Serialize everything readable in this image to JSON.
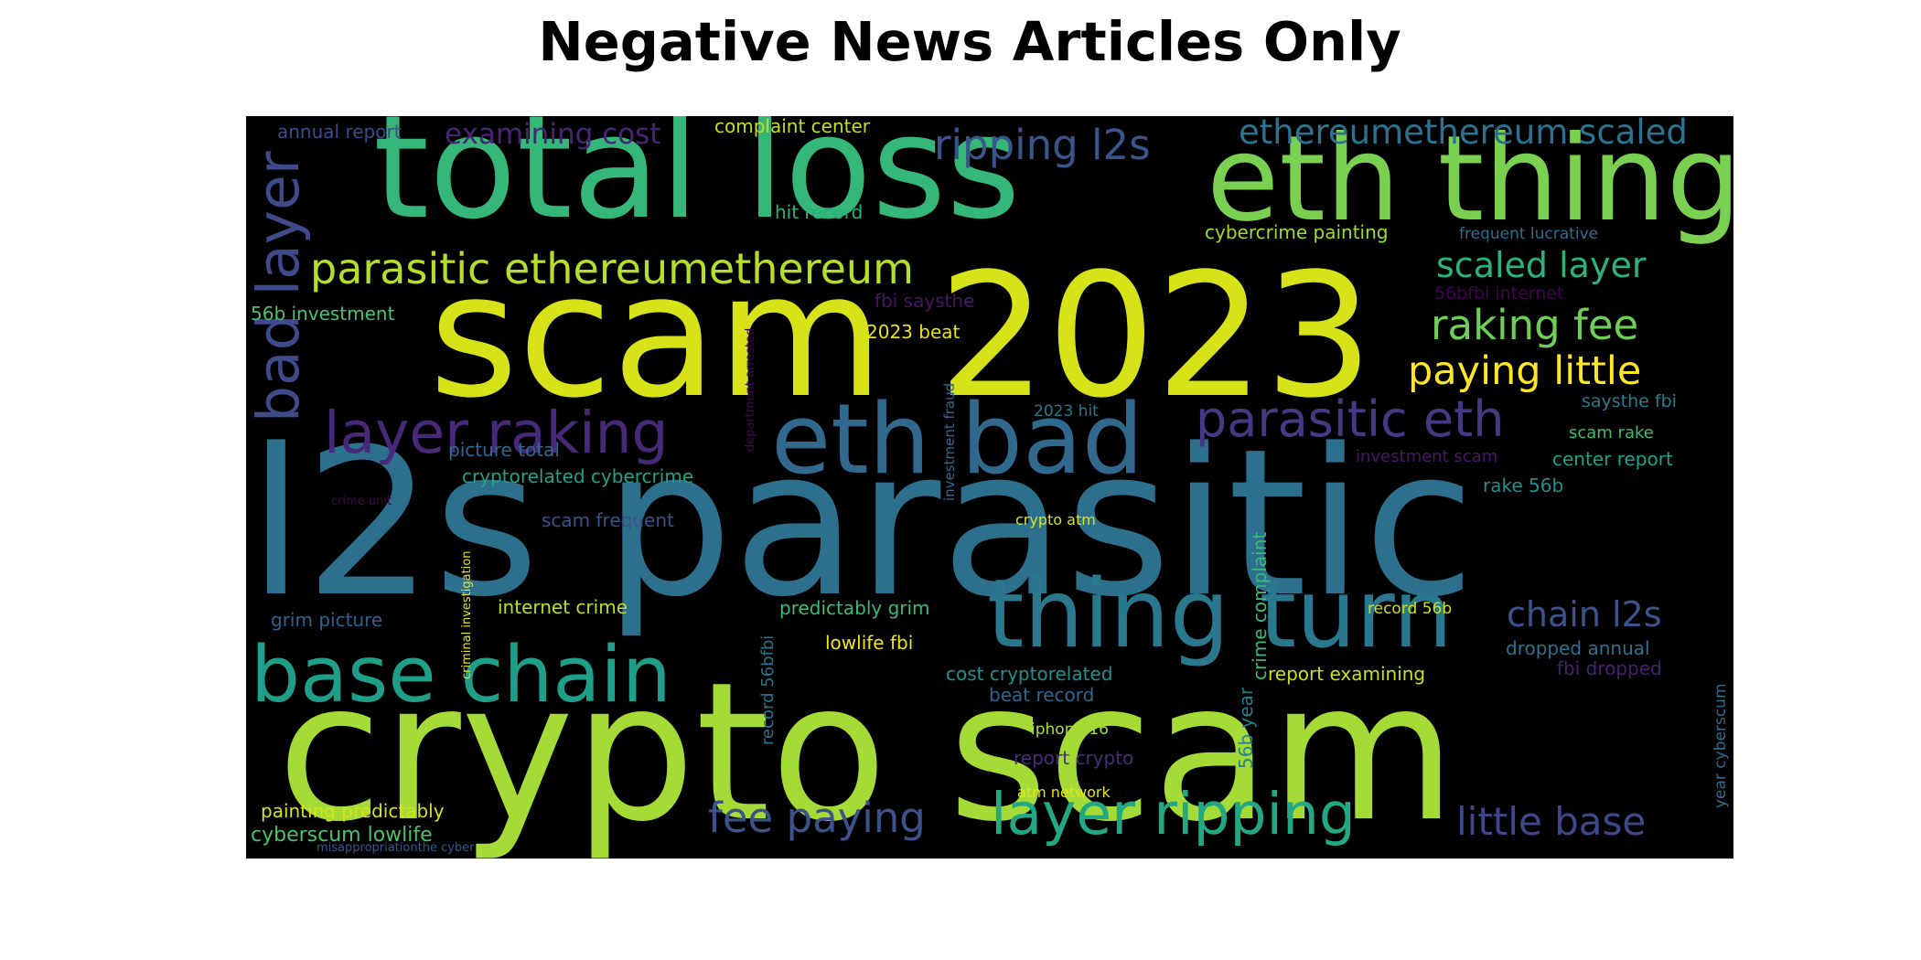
{
  "chart_data": {
    "type": "wordcloud",
    "title": "Negative News Articles Only",
    "background": "#000000",
    "colormap": "viridis",
    "words": [
      {
        "text": "l2s parasitic",
        "weight": 1.0,
        "color": "#2d708e"
      },
      {
        "text": "crypto scam",
        "weight": 0.95,
        "color": "#a5db36"
      },
      {
        "text": "scam 2023",
        "weight": 0.92,
        "color": "#d8e219"
      },
      {
        "text": "total loss",
        "weight": 0.77,
        "color": "#35b779"
      },
      {
        "text": "eth thing",
        "weight": 0.65,
        "color": "#7ad151"
      },
      {
        "text": "eth bad",
        "weight": 0.54,
        "color": "#31688e"
      },
      {
        "text": "thing turn",
        "weight": 0.52,
        "color": "#2a788e"
      },
      {
        "text": "base chain",
        "weight": 0.45,
        "color": "#1f9e89"
      },
      {
        "text": "layer ripping",
        "weight": 0.34,
        "color": "#22a884"
      },
      {
        "text": "bad layer",
        "weight": 0.34,
        "color": "#3e4a89"
      },
      {
        "text": "layer raking",
        "weight": 0.34,
        "color": "#482878"
      },
      {
        "text": "parasitic eth",
        "weight": 0.3,
        "color": "#443983"
      },
      {
        "text": "parasitic ethereumethereum",
        "weight": 0.26,
        "color": "#b5de2b"
      },
      {
        "text": "fee paying",
        "weight": 0.26,
        "color": "#3b528b"
      },
      {
        "text": "ripping l2s",
        "weight": 0.26,
        "color": "#39568c"
      },
      {
        "text": "raking fee",
        "weight": 0.26,
        "color": "#6ece58"
      },
      {
        "text": "paying little",
        "weight": 0.24,
        "color": "#fde725"
      },
      {
        "text": "little base",
        "weight": 0.24,
        "color": "#3e4989"
      },
      {
        "text": "ethereumethereum scaled",
        "weight": 0.22,
        "color": "#2c728e"
      },
      {
        "text": "scaled layer",
        "weight": 0.22,
        "color": "#2db27d"
      },
      {
        "text": "chain l2s",
        "weight": 0.22,
        "color": "#3b528b"
      },
      {
        "text": "examining cost",
        "weight": 0.16,
        "color": "#482475"
      },
      {
        "text": "complaint center",
        "weight": 0.12,
        "color": "#c2df23"
      },
      {
        "text": "annual report",
        "weight": 0.11,
        "color": "#3e4a89"
      },
      {
        "text": "hit record",
        "weight": 0.12,
        "color": "#2ab07f"
      },
      {
        "text": "cybercrime painting",
        "weight": 0.12,
        "color": "#a2da37"
      },
      {
        "text": "frequent lucrative",
        "weight": 0.1,
        "color": "#2e6e8e"
      },
      {
        "text": "56bfbi internet",
        "weight": 0.11,
        "color": "#440154"
      },
      {
        "text": "fbi saysthe",
        "weight": 0.12,
        "color": "#481467"
      },
      {
        "text": "56b investment",
        "weight": 0.12,
        "color": "#4ac16d"
      },
      {
        "text": "2023 beat",
        "weight": 0.12,
        "color": "#e5e419"
      },
      {
        "text": "department arrested",
        "weight": 0.08,
        "color": "#440154"
      },
      {
        "text": "investment fraud",
        "weight": 0.09,
        "color": "#31688e"
      },
      {
        "text": "2023 hit",
        "weight": 0.1,
        "color": "#2a788e"
      },
      {
        "text": "saysthe fbi",
        "weight": 0.11,
        "color": "#287c8e"
      },
      {
        "text": "scam rake",
        "weight": 0.1,
        "color": "#3dbc74"
      },
      {
        "text": "investment scam",
        "weight": 0.1,
        "color": "#481769"
      },
      {
        "text": "center report",
        "weight": 0.12,
        "color": "#1fa188"
      },
      {
        "text": "picture total",
        "weight": 0.12,
        "color": "#31688e"
      },
      {
        "text": "cryptorelated cybercrime",
        "weight": 0.12,
        "color": "#20a386"
      },
      {
        "text": "rake 56b",
        "weight": 0.12,
        "color": "#228d8d"
      },
      {
        "text": "crime unit",
        "weight": 0.08,
        "color": "#440154"
      },
      {
        "text": "scam frequent",
        "weight": 0.12,
        "color": "#3b518b"
      },
      {
        "text": "crypto atm",
        "weight": 0.1,
        "color": "#dae319"
      },
      {
        "text": "criminal investigation",
        "weight": 0.08,
        "color": "#e7e419"
      },
      {
        "text": "crime complaint",
        "weight": 0.12,
        "color": "#3aba76"
      },
      {
        "text": "grim picture",
        "weight": 0.12,
        "color": "#355f8d"
      },
      {
        "text": "internet crime",
        "weight": 0.12,
        "color": "#bddf26"
      },
      {
        "text": "predictably grim",
        "weight": 0.12,
        "color": "#3bbb75"
      },
      {
        "text": "record 56bfbi",
        "weight": 0.12,
        "color": "#2c738e"
      },
      {
        "text": "record 56b",
        "weight": 0.1,
        "color": "#d0e11c"
      },
      {
        "text": "lowlife fbi",
        "weight": 0.12,
        "color": "#f1e51d"
      },
      {
        "text": "dropped annual",
        "weight": 0.12,
        "color": "#2d718e"
      },
      {
        "text": "fbi dropped",
        "weight": 0.12,
        "color": "#482173"
      },
      {
        "text": "year cyberscum",
        "weight": 0.1,
        "color": "#2e6d8e"
      },
      {
        "text": "cost cryptorelated",
        "weight": 0.12,
        "color": "#21918c"
      },
      {
        "text": "report examining",
        "weight": 0.12,
        "color": "#c8e020"
      },
      {
        "text": "beat record",
        "weight": 0.12,
        "color": "#31678e"
      },
      {
        "text": "56b year",
        "weight": 0.12,
        "color": "#27808e"
      },
      {
        "text": "iphone 16",
        "weight": 0.1,
        "color": "#a8db34"
      },
      {
        "text": "report crypto",
        "weight": 0.12,
        "color": "#472c7a"
      },
      {
        "text": "atm network",
        "weight": 0.1,
        "color": "#e2e418"
      },
      {
        "text": "painting predictably",
        "weight": 0.12,
        "color": "#d5e21a"
      },
      {
        "text": "cyberscum lowlife",
        "weight": 0.12,
        "color": "#4ac16d"
      },
      {
        "text": "misappropriationthe cyber",
        "weight": 0.07,
        "color": "#39568c"
      }
    ]
  }
}
